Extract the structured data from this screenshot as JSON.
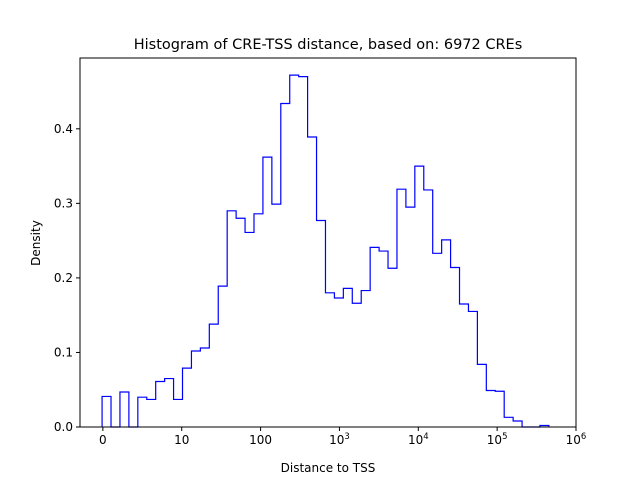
{
  "chart_data": {
    "type": "histogram",
    "title": "Histogram of CRE-TSS distance, based on: 6972 CREs",
    "xlabel": "Distance to TSS",
    "ylabel": "Density",
    "x_scale": "symlog (tick units = decades: 0 -> 0, 1 -> 10, 2 -> 100, ...)",
    "xlim": [
      -0.29,
      6.0
    ],
    "ylim": [
      0,
      0.495
    ],
    "bin_range": [
      -0.01,
      5.656
    ],
    "x_ticks": [
      {
        "pos": 0,
        "base": "0",
        "exp": ""
      },
      {
        "pos": 1,
        "base": "10",
        "exp": ""
      },
      {
        "pos": 2,
        "base": "100",
        "exp": ""
      },
      {
        "pos": 3,
        "base": "10",
        "exp": "3"
      },
      {
        "pos": 4,
        "base": "10",
        "exp": "4"
      },
      {
        "pos": 5,
        "base": "10",
        "exp": "5"
      },
      {
        "pos": 6,
        "base": "10",
        "exp": "6"
      }
    ],
    "y_ticks": [
      "0.0",
      "0.1",
      "0.2",
      "0.3",
      "0.4"
    ],
    "y_tick_values": [
      0,
      0.1,
      0.2,
      0.3,
      0.4
    ],
    "values": [
      0.041,
      0,
      0.047,
      0,
      0.04,
      0.037,
      0.061,
      0.065,
      0.037,
      0.079,
      0.102,
      0.106,
      0.138,
      0.189,
      0.29,
      0.28,
      0.261,
      0.286,
      0.362,
      0.299,
      0.434,
      0.472,
      0.47,
      0.389,
      0.277,
      0.18,
      0.173,
      0.186,
      0.166,
      0.183,
      0.241,
      0.236,
      0.213,
      0.319,
      0.295,
      0.35,
      0.318,
      0.233,
      0.251,
      0.214,
      0.165,
      0.155,
      0.084,
      0.049,
      0.048,
      0.013,
      0.008,
      0,
      0,
      0.002
    ],
    "line_color": "#0000ff",
    "histtype": "step",
    "grid": false
  }
}
